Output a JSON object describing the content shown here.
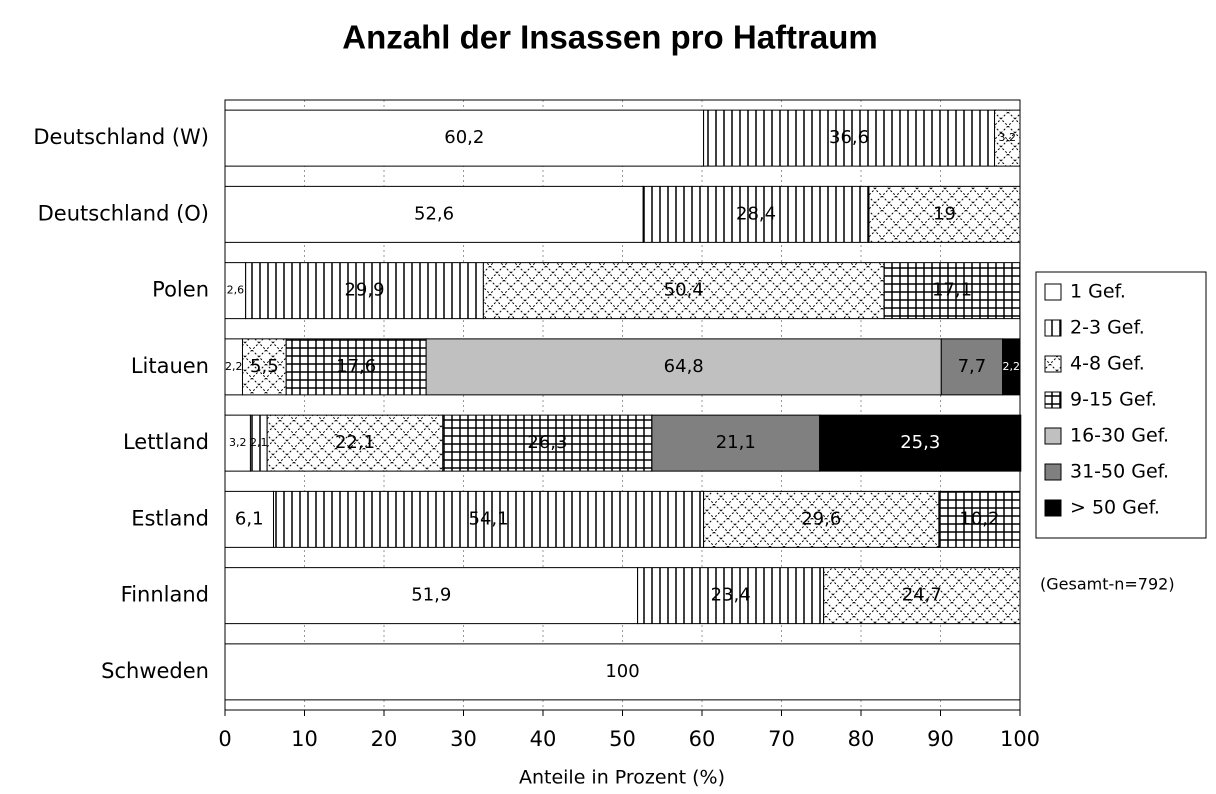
{
  "chart_data": {
    "type": "stacked_barh",
    "title": "Anzahl der Insassen pro Haftraum",
    "categories": [
      "Deutschland (W)",
      "Deutschland (O)",
      "Polen",
      "Litauen",
      "Lettland",
      "Estland",
      "Finnland",
      "Schweden"
    ],
    "series": [
      {
        "name": "1 Gef.",
        "color": "#ffffff",
        "pattern": "none",
        "values": [
          60.2,
          52.6,
          2.6,
          2.2,
          3.2,
          6.1,
          51.9,
          100
        ],
        "value_labels": [
          "60,2",
          "52,6",
          "2,6",
          "2,2",
          "3,2",
          "6,1",
          "51,9",
          "100"
        ]
      },
      {
        "name": "2-3 Gef.",
        "color": "#ffffff",
        "pattern": "vertical",
        "values": [
          36.6,
          28.4,
          29.9,
          null,
          2.1,
          54.1,
          23.4,
          null
        ],
        "value_labels": [
          "36,6",
          "28,4",
          "29,9",
          null,
          "2,1",
          "54,1",
          "23,4",
          null
        ]
      },
      {
        "name": "4-8 Gef.",
        "color": "#ffffff",
        "pattern": "crosshatch",
        "values": [
          3.2,
          19,
          50.4,
          5.5,
          22.1,
          29.6,
          24.7,
          null
        ],
        "value_labels": [
          "3,2",
          "19",
          "50,4",
          "5,5",
          "22,1",
          "29,6",
          "24,7",
          null
        ]
      },
      {
        "name": "9-15 Gef.",
        "color": "#ffffff",
        "pattern": "grid",
        "values": [
          null,
          null,
          17.1,
          17.6,
          26.3,
          10.2,
          null,
          null
        ],
        "value_labels": [
          null,
          null,
          "17,1",
          "17,6",
          "26,3",
          "10,2",
          null,
          null
        ]
      },
      {
        "name": "16-30 Gef.",
        "color": "#c0c0c0",
        "pattern": "none",
        "values": [
          null,
          null,
          null,
          64.8,
          null,
          null,
          null,
          null
        ],
        "value_labels": [
          null,
          null,
          null,
          "64,8",
          null,
          null,
          null,
          null
        ]
      },
      {
        "name": "31-50 Gef.",
        "color": "#808080",
        "pattern": "none",
        "values": [
          null,
          null,
          null,
          7.7,
          21.1,
          null,
          null,
          null
        ],
        "value_labels": [
          null,
          null,
          null,
          "7,7",
          "21,1",
          null,
          null,
          null
        ]
      },
      {
        "name": "> 50 Gef.",
        "color": "#000000",
        "pattern": "none",
        "values": [
          null,
          null,
          null,
          2.2,
          25.3,
          null,
          null,
          null
        ],
        "value_labels": [
          null,
          null,
          null,
          "2,2",
          "25,3",
          null,
          null,
          null
        ]
      }
    ],
    "xlabel": "Anteile in Prozent (%)",
    "xlim": [
      0,
      100
    ],
    "xticks": [
      0,
      10,
      20,
      30,
      40,
      50,
      60,
      70,
      80,
      90,
      100
    ],
    "grid": true,
    "legend": "right",
    "annotation": "(Gesamt-n=792)"
  }
}
